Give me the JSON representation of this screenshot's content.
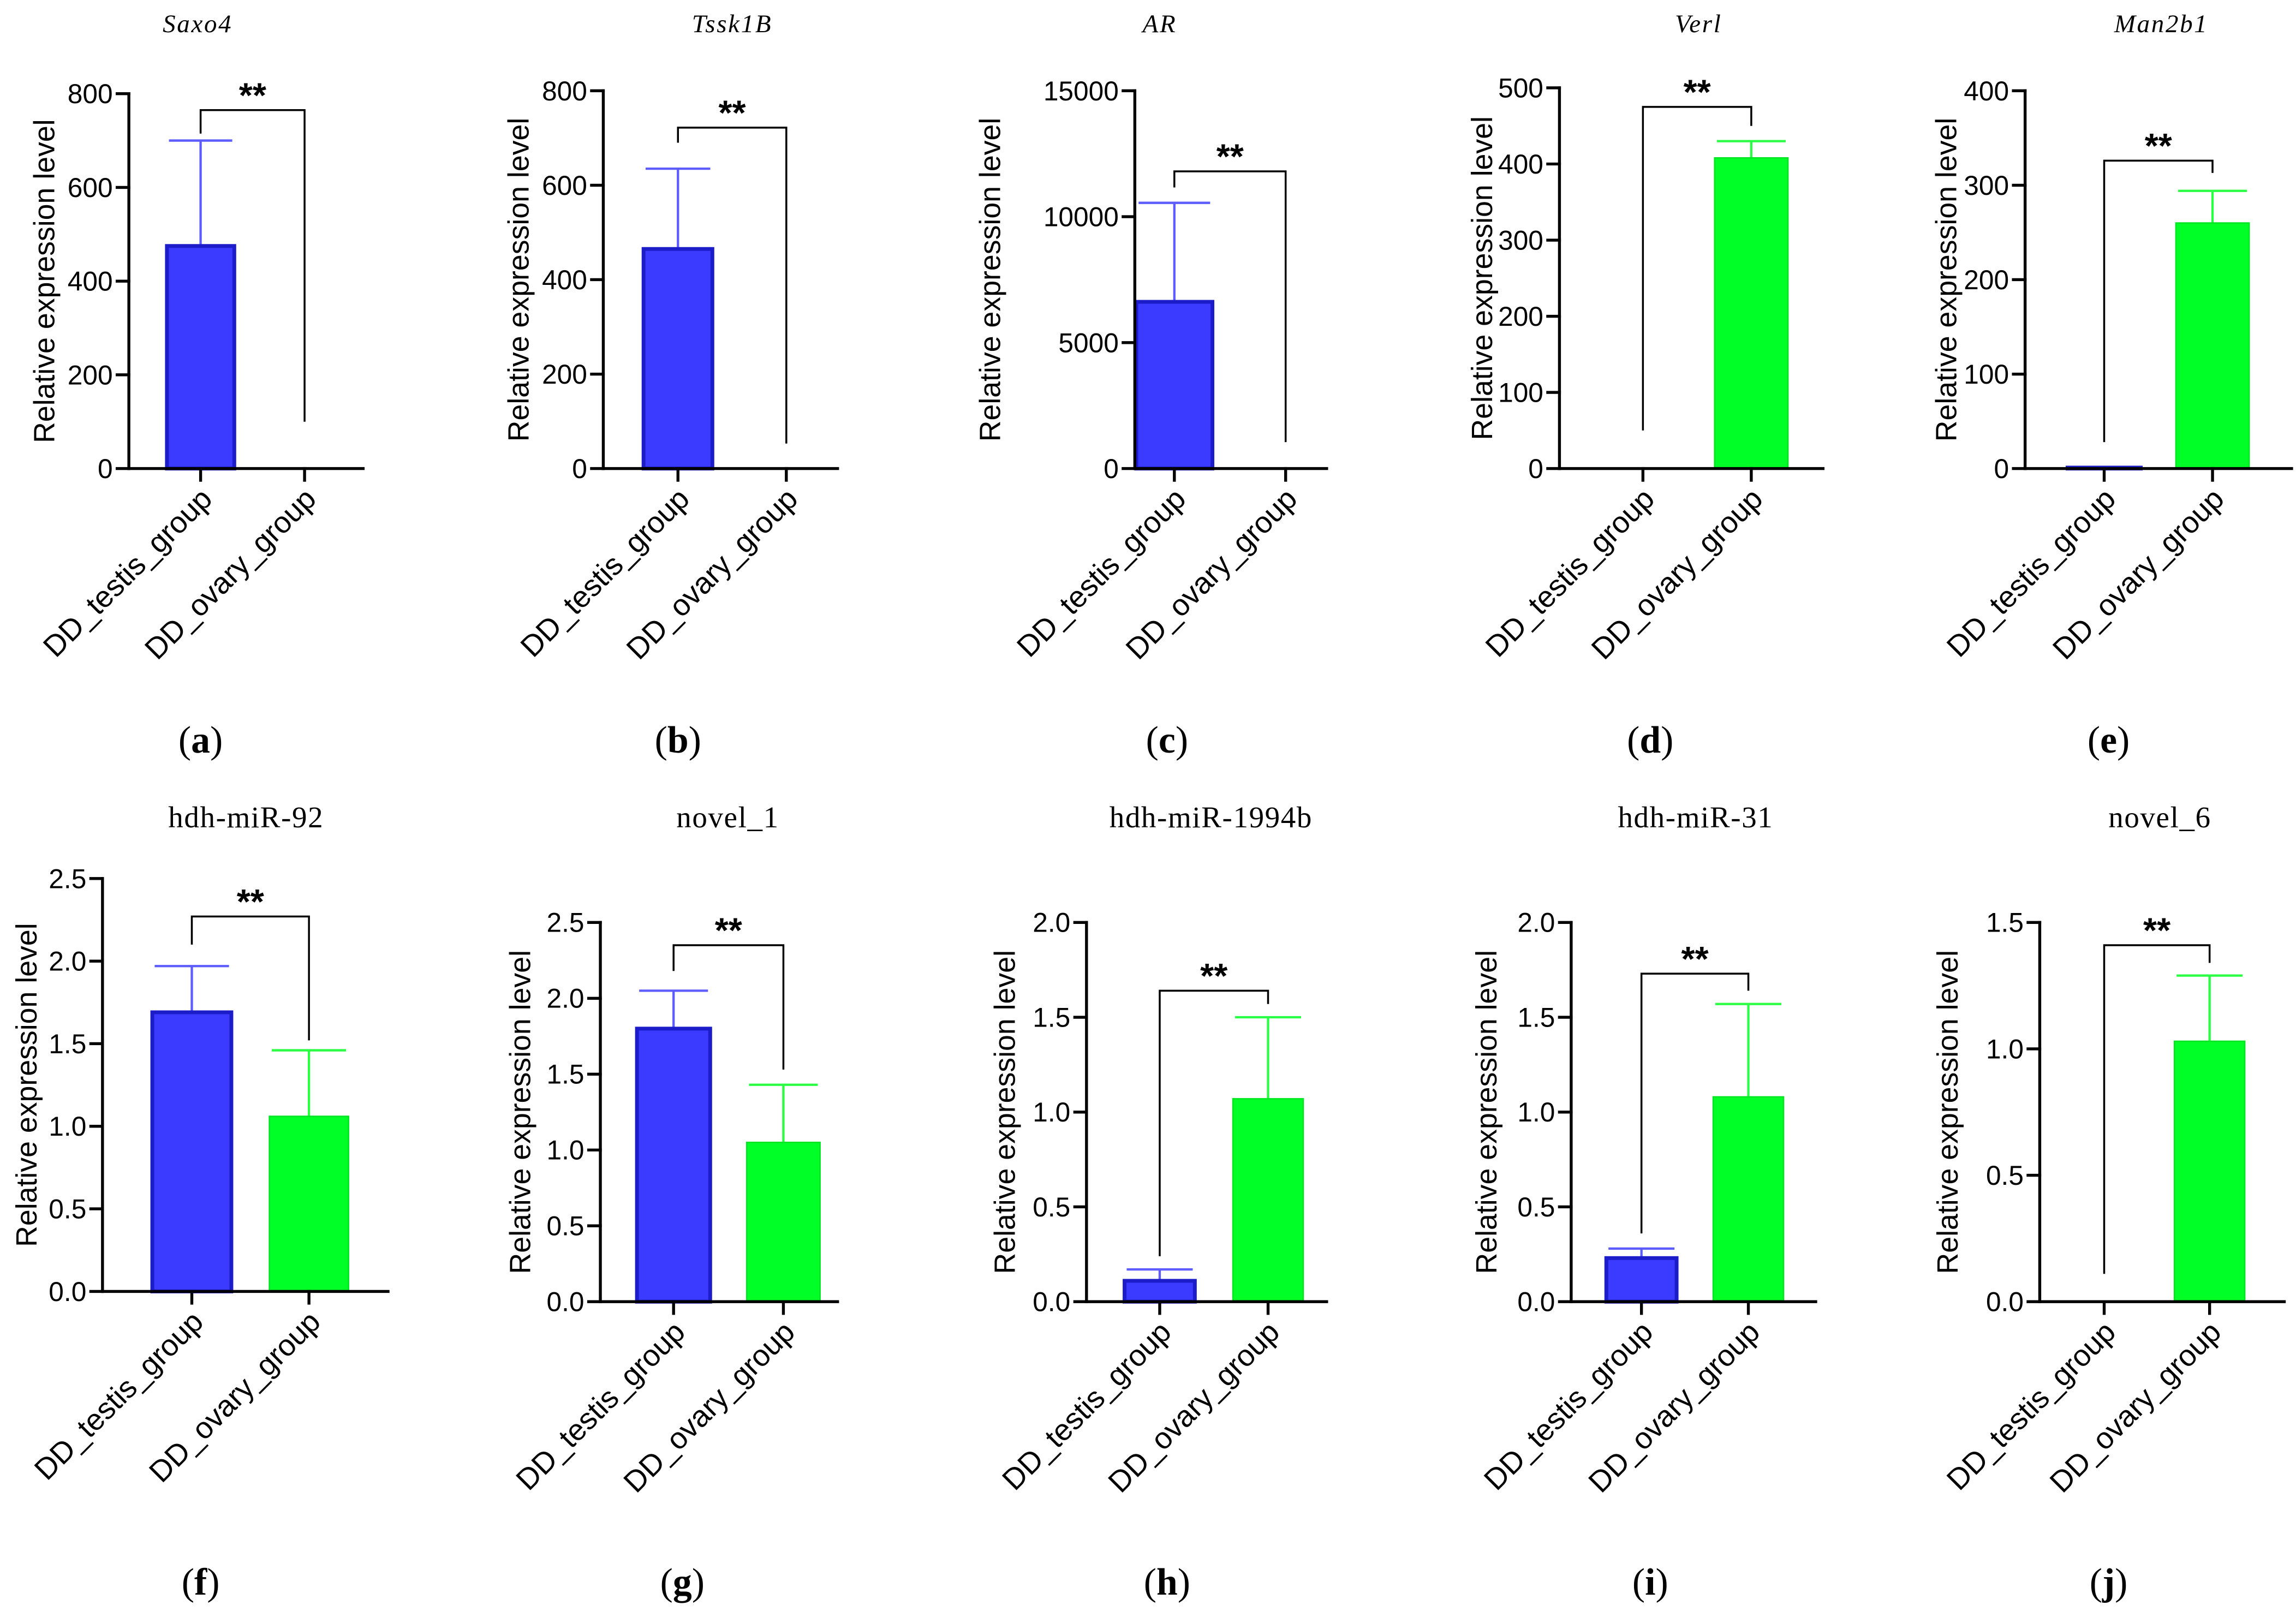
{
  "colors": {
    "testis_bar": "#3b3bff",
    "testis_edge": "#1c1cc8",
    "testis_error": "#5c5cff",
    "ovary_bar": "#00ff26",
    "ovary_edge": "#00e622",
    "ovary_error": "#2bff45",
    "axis": "#000000",
    "background": "#ffffff"
  },
  "chart_data": [
    {
      "type": "bar",
      "panel_label": "(a)",
      "title": "Saxo4",
      "ylabel": "Relative expression level",
      "categories": [
        "DD_testis_group",
        "DD_ovary_group"
      ],
      "values": [
        475,
        0
      ],
      "errors": [
        225,
        0
      ],
      "ylim": [
        0,
        800
      ],
      "yticks": [
        "0",
        "200",
        "400",
        "600",
        "800"
      ],
      "significance": "**",
      "bracket": {
        "level": 765,
        "left_end_value": 715,
        "right_end_value": 100
      }
    },
    {
      "type": "bar",
      "panel_label": "(b)",
      "title": "Tssk1B",
      "ylabel": "Relative expression level",
      "categories": [
        "DD_testis_group",
        "DD_ovary_group"
      ],
      "values": [
        465,
        0
      ],
      "errors": [
        170,
        0
      ],
      "ylim": [
        0,
        800
      ],
      "yticks": [
        "0",
        "200",
        "400",
        "600",
        "800"
      ],
      "significance": "**",
      "bracket": {
        "level": 722,
        "left_end_value": 690,
        "right_end_value": 53
      }
    },
    {
      "type": "bar",
      "panel_label": "(c)",
      "title": "AR",
      "ylabel": "Relative expression level",
      "categories": [
        "DD_testis_group",
        "DD_ovary_group"
      ],
      "values": [
        6620,
        0
      ],
      "errors": [
        3930,
        0
      ],
      "ylim": [
        0,
        15000
      ],
      "yticks": [
        "0",
        "5000",
        "10000",
        "15000"
      ],
      "significance": "**",
      "bracket": {
        "level": 11800,
        "left_end_value": 11160,
        "right_end_value": 1050
      }
    },
    {
      "type": "bar",
      "panel_label": "(d)",
      "title": "Verl",
      "ylabel": "Relative expression level",
      "categories": [
        "DD_testis_group",
        "DD_ovary_group"
      ],
      "values": [
        0,
        408
      ],
      "errors": [
        0,
        22
      ],
      "ylim": [
        0,
        500
      ],
      "yticks": [
        "0",
        "100",
        "200",
        "300",
        "400",
        "500"
      ],
      "significance": "**",
      "bracket": {
        "level": 475,
        "left_end_value": 50,
        "right_end_value": 450
      }
    },
    {
      "type": "bar",
      "panel_label": "(e)",
      "title": "Man2b1",
      "ylabel": "Relative expression level",
      "categories": [
        "DD_testis_group",
        "DD_ovary_group"
      ],
      "values": [
        1,
        260
      ],
      "errors": [
        0,
        34
      ],
      "ylim": [
        0,
        400
      ],
      "yticks": [
        "0",
        "100",
        "200",
        "300",
        "400"
      ],
      "significance": "**",
      "bracket": {
        "level": 326,
        "left_end_value": 28,
        "right_end_value": 313
      }
    },
    {
      "type": "bar",
      "panel_label": "(f)",
      "title": "hdh-miR-92",
      "ylabel": "Relative expression level",
      "categories": [
        "DD_testis_group",
        "DD_ovary_group"
      ],
      "values": [
        1.69,
        1.06
      ],
      "errors": [
        0.28,
        0.4
      ],
      "ylim": [
        0,
        2.5
      ],
      "yticks": [
        "0.0",
        "0.5",
        "1.0",
        "1.5",
        "2.0",
        "2.5"
      ],
      "significance": "**",
      "bracket": {
        "level": 2.27,
        "left_end_value": 2.1,
        "right_end_value": 1.52
      }
    },
    {
      "type": "bar",
      "panel_label": "(g)",
      "title": "novel_1",
      "ylabel": "Relative expression level",
      "categories": [
        "DD_testis_group",
        "DD_ovary_group"
      ],
      "values": [
        1.8,
        1.05
      ],
      "errors": [
        0.25,
        0.38
      ],
      "ylim": [
        0,
        2.5
      ],
      "yticks": [
        "0.0",
        "0.5",
        "1.0",
        "1.5",
        "2.0",
        "2.5"
      ],
      "significance": "**",
      "bracket": {
        "level": 2.35,
        "left_end_value": 2.18,
        "right_end_value": 1.53
      }
    },
    {
      "type": "bar",
      "panel_label": "(h)",
      "title": "hdh-miR-1994b",
      "ylabel": "Relative expression level",
      "categories": [
        "DD_testis_group",
        "DD_ovary_group"
      ],
      "values": [
        0.11,
        1.07
      ],
      "errors": [
        0.06,
        0.43
      ],
      "ylim": [
        0,
        2.0
      ],
      "yticks": [
        "0.0",
        "0.5",
        "1.0",
        "1.5",
        "2.0"
      ],
      "significance": "**",
      "bracket": {
        "level": 1.64,
        "left_end_value": 0.24,
        "right_end_value": 1.57
      }
    },
    {
      "type": "bar",
      "panel_label": "(i)",
      "title": "hdh-miR-31",
      "ylabel": "Relative expression level",
      "categories": [
        "DD_testis_group",
        "DD_ovary_group"
      ],
      "values": [
        0.23,
        1.08
      ],
      "errors": [
        0.05,
        0.49
      ],
      "ylim": [
        0,
        2.0
      ],
      "yticks": [
        "0.0",
        "0.5",
        "1.0",
        "1.5",
        "2.0"
      ],
      "significance": "**",
      "bracket": {
        "level": 1.73,
        "left_end_value": 0.36,
        "right_end_value": 1.64
      }
    },
    {
      "type": "bar",
      "panel_label": "(j)",
      "title": "novel_6",
      "ylabel": "Relative expression level",
      "categories": [
        "DD_testis_group",
        "DD_ovary_group"
      ],
      "values": [
        0,
        1.03
      ],
      "errors": [
        0,
        0.26
      ],
      "ylim": [
        0,
        1.5
      ],
      "yticks": [
        "0.0",
        "0.5",
        "1.0",
        "1.5"
      ],
      "significance": "**",
      "bracket": {
        "level": 1.41,
        "left_end_value": 0.11,
        "right_end_value": 1.34
      }
    }
  ]
}
